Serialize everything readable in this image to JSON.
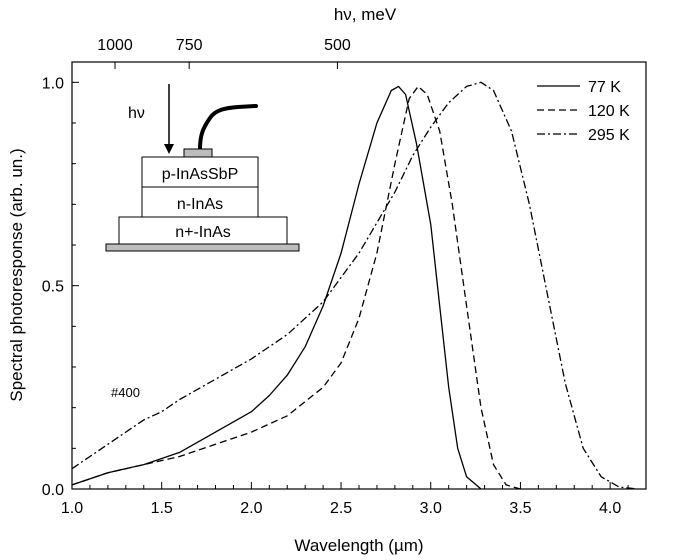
{
  "chart_data": {
    "type": "line",
    "xlabel": "Wavelength (µm)",
    "ylabel": "Spectral photoresponse (arb. un.)",
    "top_axis_label": "hν, meV",
    "xlim": [
      1.0,
      4.2
    ],
    "ylim": [
      0.0,
      1.05
    ],
    "x_ticks": [
      "1.0",
      "1.5",
      "2.0",
      "2.5",
      "3.0",
      "3.5",
      "4.0"
    ],
    "y_ticks": [
      "0.0",
      "0.5",
      "1.0"
    ],
    "top_ticks": [
      {
        "label": "1000",
        "meV": 1000
      },
      {
        "label": "750",
        "meV": 750
      },
      {
        "label": "500",
        "meV": 500
      }
    ],
    "grid": false,
    "legend_position": "top-right",
    "annotation": "#400",
    "series": [
      {
        "name": "77 K",
        "style": "solid",
        "points": [
          [
            1.0,
            0.01
          ],
          [
            1.2,
            0.04
          ],
          [
            1.4,
            0.06
          ],
          [
            1.6,
            0.09
          ],
          [
            1.8,
            0.14
          ],
          [
            2.0,
            0.19
          ],
          [
            2.1,
            0.23
          ],
          [
            2.2,
            0.28
          ],
          [
            2.3,
            0.35
          ],
          [
            2.4,
            0.45
          ],
          [
            2.5,
            0.58
          ],
          [
            2.6,
            0.75
          ],
          [
            2.7,
            0.9
          ],
          [
            2.78,
            0.98
          ],
          [
            2.82,
            0.99
          ],
          [
            2.86,
            0.97
          ],
          [
            2.92,
            0.85
          ],
          [
            3.0,
            0.65
          ],
          [
            3.05,
            0.45
          ],
          [
            3.1,
            0.25
          ],
          [
            3.15,
            0.1
          ],
          [
            3.2,
            0.03
          ],
          [
            3.28,
            0.0
          ]
        ]
      },
      {
        "name": "120 K",
        "style": "dashed",
        "points": [
          [
            1.0,
            0.01
          ],
          [
            1.2,
            0.04
          ],
          [
            1.4,
            0.06
          ],
          [
            1.6,
            0.08
          ],
          [
            1.8,
            0.11
          ],
          [
            2.0,
            0.14
          ],
          [
            2.2,
            0.18
          ],
          [
            2.4,
            0.25
          ],
          [
            2.5,
            0.31
          ],
          [
            2.6,
            0.42
          ],
          [
            2.7,
            0.58
          ],
          [
            2.8,
            0.8
          ],
          [
            2.88,
            0.96
          ],
          [
            2.93,
            0.99
          ],
          [
            2.98,
            0.97
          ],
          [
            3.05,
            0.88
          ],
          [
            3.12,
            0.7
          ],
          [
            3.2,
            0.45
          ],
          [
            3.28,
            0.2
          ],
          [
            3.35,
            0.06
          ],
          [
            3.42,
            0.01
          ],
          [
            3.5,
            0.0
          ]
        ]
      },
      {
        "name": "295 K",
        "style": "dash-dot",
        "points": [
          [
            1.0,
            0.05
          ],
          [
            1.1,
            0.08
          ],
          [
            1.2,
            0.11
          ],
          [
            1.3,
            0.14
          ],
          [
            1.4,
            0.17
          ],
          [
            1.5,
            0.19
          ],
          [
            1.6,
            0.22
          ],
          [
            1.8,
            0.27
          ],
          [
            2.0,
            0.32
          ],
          [
            2.2,
            0.38
          ],
          [
            2.4,
            0.46
          ],
          [
            2.6,
            0.58
          ],
          [
            2.8,
            0.73
          ],
          [
            2.9,
            0.82
          ],
          [
            3.0,
            0.89
          ],
          [
            3.1,
            0.95
          ],
          [
            3.2,
            0.99
          ],
          [
            3.28,
            1.0
          ],
          [
            3.35,
            0.98
          ],
          [
            3.45,
            0.88
          ],
          [
            3.55,
            0.7
          ],
          [
            3.65,
            0.48
          ],
          [
            3.75,
            0.26
          ],
          [
            3.85,
            0.1
          ],
          [
            3.95,
            0.03
          ],
          [
            4.05,
            0.005
          ],
          [
            4.15,
            0.0
          ]
        ]
      }
    ]
  },
  "inset": {
    "arrow_label": "hν",
    "layer_top": "p-InAsSbP",
    "layer_middle": "n-InAs",
    "layer_bottom": "n+-InAs"
  }
}
